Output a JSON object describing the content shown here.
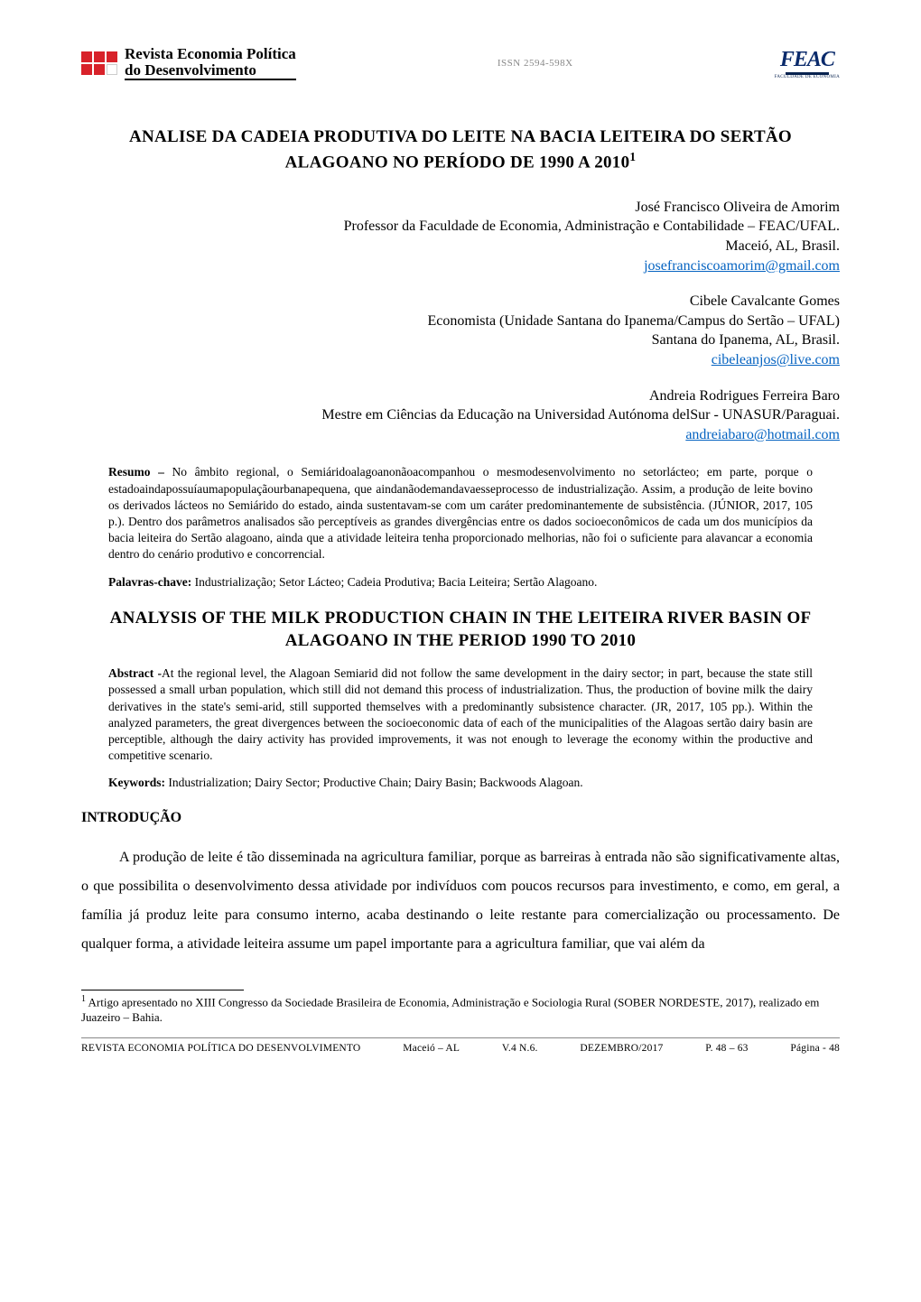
{
  "header": {
    "journal_line1": "Revista Economia Política",
    "journal_line2": "do Desenvolvimento",
    "issn": "ISSN 2594-598X",
    "feac": "FEAC",
    "feac_sub": "FACULDADE DE ECONOMIA",
    "square_colors": [
      "#d8222a",
      "#d8222a",
      "#d8222a",
      "#d8222a",
      "#d8222a",
      "#ffffff"
    ]
  },
  "title_pt": "ANALISE DA CADEIA PRODUTIVA DO LEITE NA BACIA LEITEIRA DO SERTÃO ALAGOANO NO PERÍODO DE 1990 A 2010",
  "title_sup": "1",
  "authors": [
    {
      "name": "José Francisco Oliveira de Amorim",
      "aff": "Professor da Faculdade de Economia, Administração e Contabilidade – FEAC/UFAL.",
      "loc": "Maceió, AL, Brasil.",
      "email": "josefranciscoamorim@gmail.com"
    },
    {
      "name": "Cibele Cavalcante Gomes",
      "aff": "Economista (Unidade Santana do Ipanema/Campus do Sertão – UFAL)",
      "loc": "Santana do Ipanema, AL, Brasil.",
      "email": "cibeleanjos@live.com"
    },
    {
      "name": "Andreia Rodrigues Ferreira Baro",
      "aff": "Mestre em Ciências da Educação na Universidad Autónoma delSur - UNASUR/Paraguai.",
      "loc": "",
      "email": "andreiabaro@hotmail.com"
    }
  ],
  "resumo": {
    "label": "Resumo – ",
    "text": "No âmbito regional, o Semiáridoalagoanonãoacompanhou o mesmodesenvolvimento no setorlácteo; em parte, porque o estadoaindapossuíaumapopulaçãourbanapequena, que aindanãodemandavaesseprocesso de industrialização. Assim, a produção de leite bovino os derivados lácteos no Semiárido do estado, ainda sustentavam-se com um caráter predominantemente de subsistência. (JÚNIOR, 2017, 105 p.). Dentro dos parâmetros analisados são perceptíveis as grandes divergências entre os dados socioeconômicos de cada um dos municípios da bacia leiteira do Sertão alagoano, ainda que a atividade leiteira tenha proporcionado melhorias, não foi o suficiente para alavancar a economia dentro do cenário produtivo e concorrencial."
  },
  "palavras": {
    "label": "Palavras-chave: ",
    "text": "Industrialização; Setor Lácteo; Cadeia Produtiva; Bacia Leiteira; Sertão Alagoano."
  },
  "title_en": "ANALYSIS OF THE MILK PRODUCTION CHAIN IN THE LEITEIRA RIVER BASIN OF ALAGOANO IN THE PERIOD 1990 TO 2010",
  "abstract": {
    "label": "Abstract -",
    "text": "At the regional level, the Alagoan Semiarid did not follow the same development in the dairy sector; in part, because the state still possessed a small urban population, which still did not demand this process of industrialization. Thus, the production of bovine milk the dairy derivatives in the state's semi-arid, still supported themselves with a predominantly subsistence character. (JR, 2017, 105 pp.). Within the analyzed parameters, the great divergences between the socioeconomic data of each of the municipalities of the Alagoas sertão dairy basin are perceptible, although the dairy activity has provided improvements, it was not enough to leverage the economy within the productive and competitive scenario."
  },
  "keywords": {
    "label": "Keywords: ",
    "text": "Industrialization; Dairy Sector; Productive Chain; Dairy Basin; Backwoods Alagoan."
  },
  "section1": "INTRODUÇÃO",
  "body1": "A produção de leite é tão disseminada na agricultura familiar, porque as barreiras à entrada não são significativamente altas, o que possibilita o desenvolvimento dessa atividade por indivíduos com poucos recursos para investimento, e como, em geral, a família já produz leite para consumo interno, acaba destinando o leite restante para comercialização ou processamento. De qualquer forma, a atividade leiteira assume um papel importante para a agricultura familiar, que vai além da",
  "footnote": {
    "marker": "1",
    "text": " Artigo apresentado no XIII Congresso da Sociedade Brasileira de Economia, Administração e Sociologia Rural (SOBER NORDESTE, 2017), realizado em Juazeiro – Bahia."
  },
  "footer": {
    "journal": "REVISTA ECONOMIA POLÍTICA DO DESENVOLVIMENTO",
    "city": "Maceió – AL",
    "vol": "V.4 N.6.",
    "date": "DEZEMBRO/2017",
    "pages": "P. 48 – 63",
    "pagenum": "Página - 48"
  },
  "colors": {
    "link": "#0563c1",
    "feac": "#0a2a6b"
  }
}
